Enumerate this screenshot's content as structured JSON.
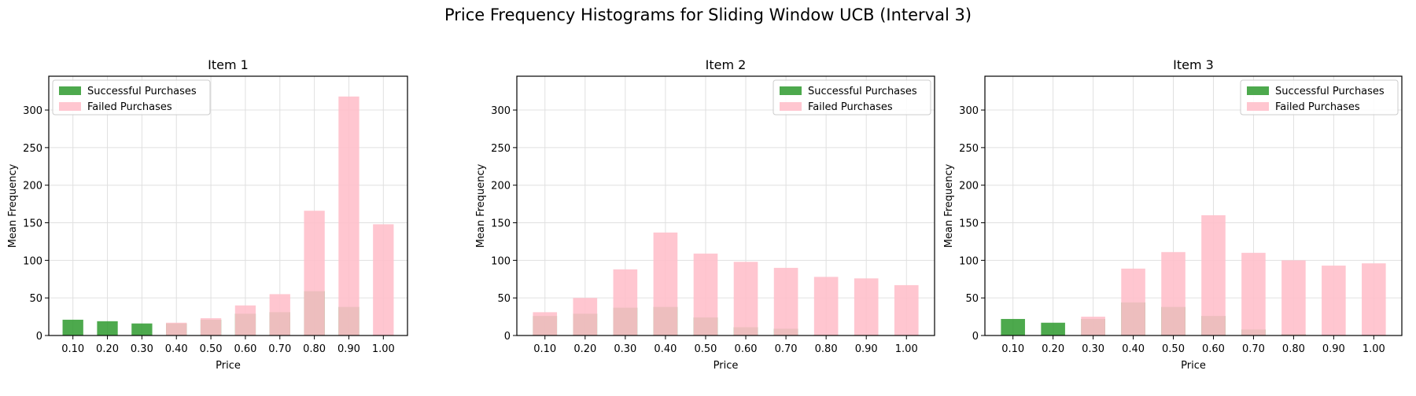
{
  "figure": {
    "title": "Price Frequency Histograms for Sliding Window UCB (Interval 3)"
  },
  "colors": {
    "successful": "#2e9a2e",
    "failed": "#ffc0cb",
    "grid": "#e0e0e0",
    "axis": "#000000"
  },
  "chart_data": [
    {
      "type": "bar",
      "stacking": "overlaid",
      "title": "Item 1",
      "xlabel": "Price",
      "ylabel": "Mean Frequency",
      "categories": [
        "0.10",
        "0.20",
        "0.30",
        "0.40",
        "0.50",
        "0.60",
        "0.70",
        "0.80",
        "0.90",
        "1.00"
      ],
      "yticks": [
        0,
        50,
        100,
        150,
        200,
        250,
        300
      ],
      "ylim": [
        0,
        345
      ],
      "grid": true,
      "legend_position": "top-left",
      "series": [
        {
          "name": "Successful Purchases",
          "values": [
            21,
            19,
            16,
            16,
            21,
            29,
            31,
            59,
            38,
            0
          ]
        },
        {
          "name": "Failed Purchases",
          "values": [
            0,
            0,
            0,
            17,
            23,
            40,
            55,
            166,
            318,
            148
          ]
        }
      ]
    },
    {
      "type": "bar",
      "stacking": "overlaid",
      "title": "Item 2",
      "xlabel": "Price",
      "ylabel": "Mean Frequency",
      "categories": [
        "0.10",
        "0.20",
        "0.30",
        "0.40",
        "0.50",
        "0.60",
        "0.70",
        "0.80",
        "0.90",
        "1.00"
      ],
      "yticks": [
        0,
        50,
        100,
        150,
        200,
        250,
        300
      ],
      "ylim": [
        0,
        345
      ],
      "grid": true,
      "legend_position": "top-right",
      "series": [
        {
          "name": "Successful Purchases",
          "values": [
            26,
            29,
            37,
            38,
            24,
            11,
            9,
            1,
            1,
            0
          ]
        },
        {
          "name": "Failed Purchases",
          "values": [
            31,
            50,
            88,
            137,
            109,
            98,
            90,
            78,
            76,
            67
          ]
        }
      ]
    },
    {
      "type": "bar",
      "stacking": "overlaid",
      "title": "Item 3",
      "xlabel": "Price",
      "ylabel": "Mean Frequency",
      "categories": [
        "0.10",
        "0.20",
        "0.30",
        "0.40",
        "0.50",
        "0.60",
        "0.70",
        "0.80",
        "0.90",
        "1.00"
      ],
      "yticks": [
        0,
        50,
        100,
        150,
        200,
        250,
        300
      ],
      "ylim": [
        0,
        345
      ],
      "grid": true,
      "legend_position": "top-right",
      "series": [
        {
          "name": "Successful Purchases",
          "values": [
            22,
            17,
            22,
            44,
            38,
            26,
            8,
            2,
            0,
            0
          ]
        },
        {
          "name": "Failed Purchases",
          "values": [
            0,
            0,
            25,
            89,
            111,
            160,
            110,
            100,
            93,
            96
          ]
        }
      ]
    }
  ]
}
